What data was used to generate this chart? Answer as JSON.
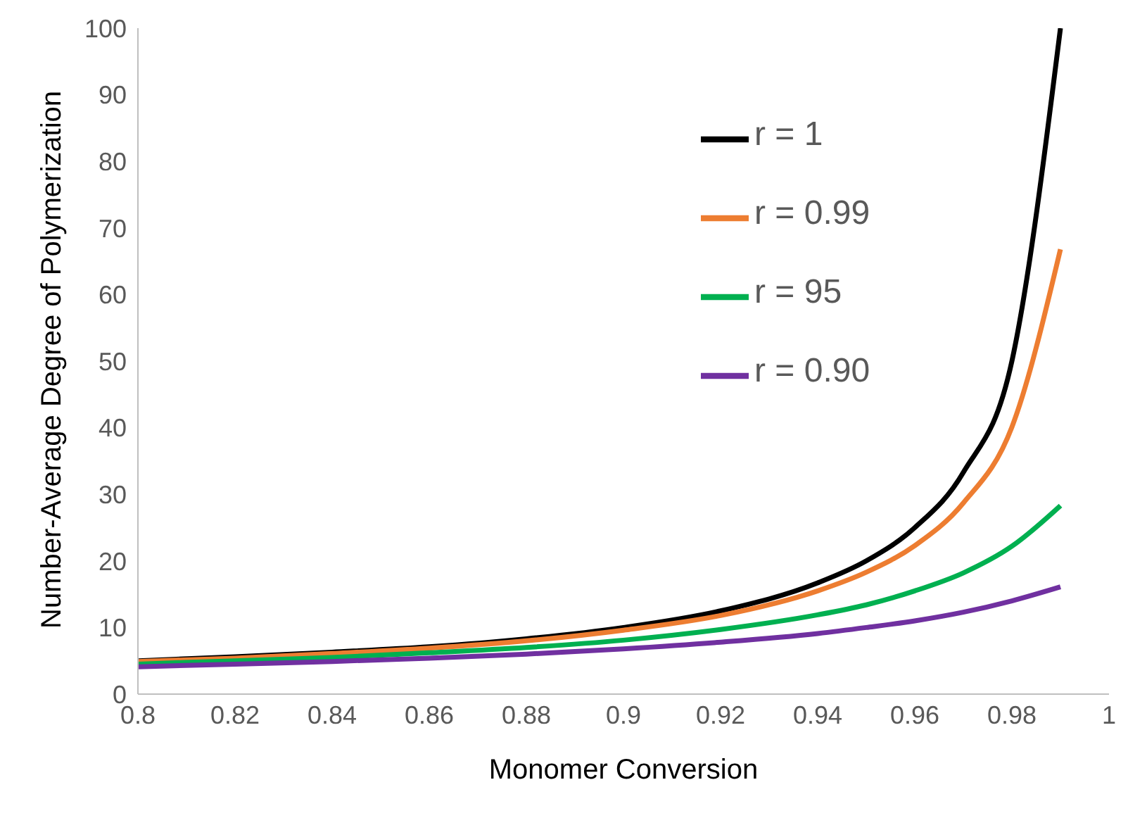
{
  "chart_data": {
    "type": "line",
    "xlabel": "Monomer Conversion",
    "ylabel": "Number-Average Degree of Polymerization",
    "x": [
      0.8,
      0.82,
      0.84,
      0.86,
      0.88,
      0.9,
      0.92,
      0.94,
      0.95,
      0.96,
      0.97,
      0.98,
      0.99
    ],
    "series": [
      {
        "name": "r = 1",
        "color": "#000000",
        "values": [
          5,
          5.6,
          6.3,
          7.1,
          8.3,
          10,
          12.5,
          16.7,
          20,
          25,
          33.3,
          50,
          100
        ]
      },
      {
        "name": "r = 0.99",
        "color": "#ed7d31",
        "values": [
          4.9,
          5.4,
          6.1,
          6.9,
          8,
          9.6,
          11.8,
          15.5,
          18.3,
          22.3,
          28.7,
          40.1,
          66.8
        ]
      },
      {
        "name": "r = 95",
        "color": "#00b050",
        "values": [
          4.5,
          5,
          5.5,
          6.2,
          7,
          8.1,
          9.7,
          11.9,
          13.4,
          15.5,
          18.2,
          22.2,
          28.3
        ]
      },
      {
        "name": "r = 0.90",
        "color": "#7030a0",
        "values": [
          4.1,
          4.5,
          4.9,
          5.4,
          6,
          6.8,
          7.8,
          9.1,
          10,
          11,
          12.3,
          14,
          16.1
        ]
      }
    ],
    "xlim": [
      0.8,
      1
    ],
    "xticks": [
      0.8,
      0.82,
      0.84,
      0.86,
      0.88,
      0.9,
      0.92,
      0.94,
      0.96,
      0.98,
      1
    ],
    "ylim": [
      0,
      100
    ],
    "yticks": [
      0,
      10,
      20,
      30,
      40,
      50,
      60,
      70,
      80,
      90,
      100
    ],
    "grid": false,
    "legend": "top right",
    "marker": "none",
    "line_style": "solid"
  }
}
